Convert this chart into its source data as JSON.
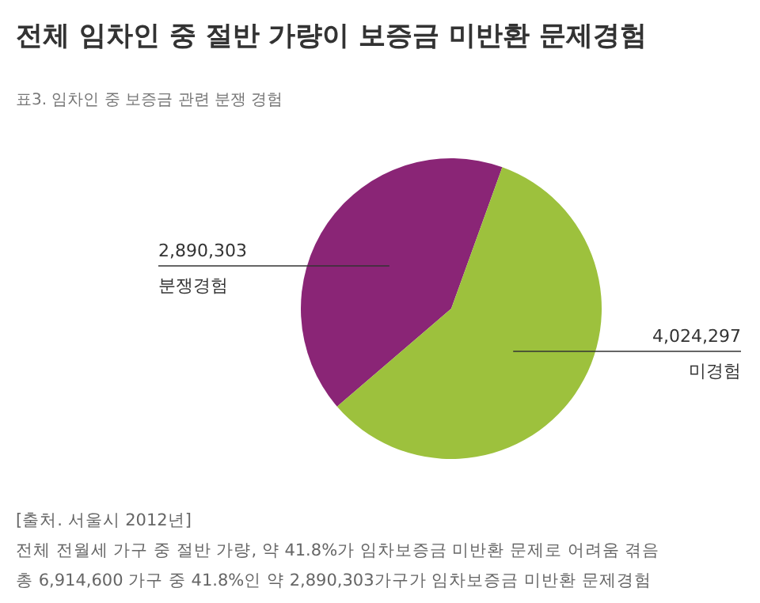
{
  "chart_data": {
    "type": "pie",
    "title": "전체 임차인 중 절반 가량이 보증금 미반환 문제경험",
    "subtitle": "표3. 임차인 중 보증금 관련 분쟁 경험",
    "categories": [
      "분쟁경험",
      "미경험"
    ],
    "values": [
      2890303,
      4024297
    ],
    "colors": [
      "#8a2576",
      "#9dc13d"
    ],
    "value_labels": [
      "2,890,303",
      "4,024,297"
    ],
    "legend": false,
    "annotations": [
      "[출처. 서울시 2012년]",
      "전체 전월세 가구 중 절반 가량, 약 41.8%가 임차보증금 미반환 문제로 어려움 겪음",
      "총 6,914,600 가구 중 41.8%인 약 2,890,303가구가 임차보증금 미반환 문제경험"
    ]
  }
}
